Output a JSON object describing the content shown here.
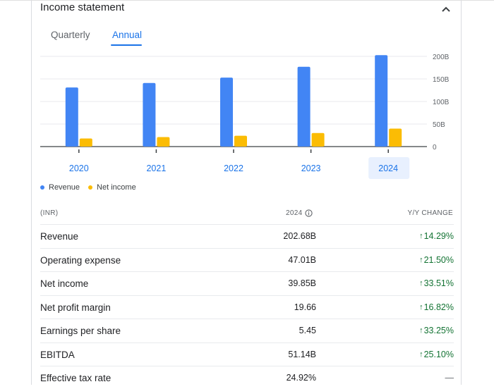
{
  "card": {
    "title": "Income statement",
    "tabs": [
      {
        "label": "Quarterly",
        "active": false
      },
      {
        "label": "Annual",
        "active": true
      }
    ]
  },
  "colors": {
    "revenue": "#4285f4",
    "net_income": "#fbbc04",
    "accent": "#1a73e8",
    "positive": "#137333"
  },
  "chart_data": {
    "type": "bar",
    "categories": [
      "2020",
      "2021",
      "2022",
      "2023",
      "2024"
    ],
    "selected_category": "2024",
    "series": [
      {
        "name": "Revenue",
        "values": [
          131,
          141,
          153,
          177,
          202.68
        ]
      },
      {
        "name": "Net income",
        "values": [
          18,
          21,
          24,
          30,
          39.85
        ]
      }
    ],
    "y_ticks": [
      "0",
      "50B",
      "100B",
      "150B",
      "200B"
    ],
    "ylim": [
      0,
      200
    ],
    "y_axis_side": "right",
    "grid": true,
    "legend_position": "bottom-left"
  },
  "table": {
    "unit": "(INR)",
    "year": "2024",
    "change_header": "Y/Y CHANGE",
    "rows": [
      {
        "label": "Revenue",
        "value": "202.68B",
        "change": "14.29%",
        "direction": "up"
      },
      {
        "label": "Operating expense",
        "value": "47.01B",
        "change": "21.50%",
        "direction": "up"
      },
      {
        "label": "Net income",
        "value": "39.85B",
        "change": "33.51%",
        "direction": "up"
      },
      {
        "label": "Net profit margin",
        "value": "19.66",
        "change": "16.82%",
        "direction": "up"
      },
      {
        "label": "Earnings per share",
        "value": "5.45",
        "change": "33.25%",
        "direction": "up"
      },
      {
        "label": "EBITDA",
        "value": "51.14B",
        "change": "25.10%",
        "direction": "up"
      },
      {
        "label": "Effective tax rate",
        "value": "24.92%",
        "change": "—",
        "direction": "none"
      }
    ]
  }
}
